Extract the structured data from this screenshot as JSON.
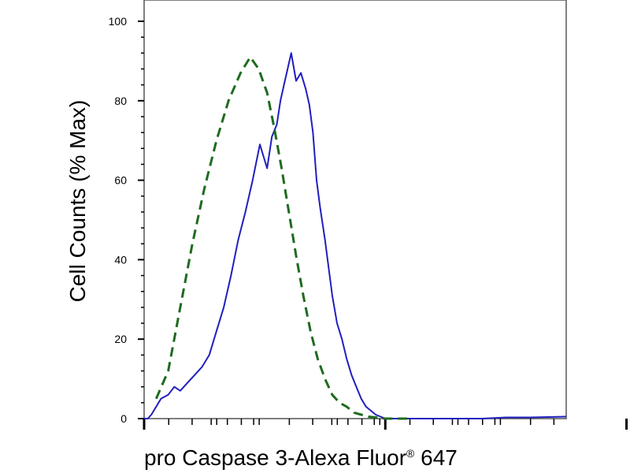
{
  "chart_data": {
    "type": "line",
    "xlabel": "pro Caspase 3-Alexa Fluor",
    "xlabel_sup": "®",
    "xlabel_suffix": " 647",
    "ylabel": "Cell Counts (% Max)",
    "x_scale": "log",
    "xlim": [
      1.0,
      4.5
    ],
    "ylim": [
      0,
      100
    ],
    "y_ticks": [
      0,
      20,
      40,
      60,
      80,
      100
    ],
    "y_tick_labels": [
      "0",
      "20",
      "40",
      "60",
      "80",
      "100"
    ],
    "x_major_ticks": [
      1.0,
      3.0,
      5.0
    ],
    "grid": false,
    "legend": "none",
    "series": [
      {
        "color": "#1f1fbf",
        "style": "solid",
        "x": [
          1.0,
          1.03,
          1.06,
          1.1,
          1.14,
          1.2,
          1.25,
          1.3,
          1.36,
          1.42,
          1.48,
          1.54,
          1.6,
          1.66,
          1.72,
          1.78,
          1.84,
          1.9,
          1.96,
          2.02,
          2.06,
          2.1,
          2.13,
          2.16,
          2.19,
          2.22,
          2.26,
          2.3,
          2.34,
          2.37,
          2.4,
          2.43,
          2.46,
          2.5,
          2.53,
          2.56,
          2.6,
          2.64,
          2.68,
          2.72,
          2.76,
          2.8,
          2.84,
          2.88,
          2.92,
          2.96,
          3.0,
          3.04,
          3.08,
          3.12,
          3.16,
          3.2,
          3.25,
          3.3,
          3.35,
          3.4,
          3.5,
          3.6,
          3.7,
          3.8,
          4.0,
          4.2,
          4.5
        ],
        "values": [
          0,
          0,
          1,
          3,
          5,
          6,
          8,
          7,
          9,
          11,
          13,
          16,
          22,
          28,
          36,
          45,
          52,
          60,
          69,
          63,
          71,
          74,
          80,
          84,
          88,
          92,
          85,
          87,
          83,
          79,
          72,
          60,
          53,
          45,
          38,
          31,
          24,
          20,
          15,
          11,
          8,
          5,
          3,
          2,
          1,
          0.5,
          0,
          0,
          0,
          0,
          0,
          0,
          0,
          0,
          0,
          0,
          0,
          0,
          0,
          0,
          0.3,
          0.3,
          0.5
        ]
      },
      {
        "color": "#1f6b1f",
        "style": "dashed",
        "x": [
          1.1,
          1.2,
          1.3,
          1.4,
          1.5,
          1.6,
          1.7,
          1.8,
          1.88,
          1.95,
          2.02,
          2.08,
          2.14,
          2.2,
          2.26,
          2.32,
          2.38,
          2.44,
          2.5,
          2.56,
          2.62,
          2.68,
          2.74,
          2.8,
          2.86,
          2.92,
          3.0,
          3.06,
          3.12,
          3.18
        ],
        "values": [
          5,
          12,
          28,
          44,
          58,
          70,
          80,
          87,
          91,
          88,
          82,
          73,
          63,
          52,
          41,
          31,
          22,
          15,
          10,
          6,
          4,
          3,
          1.5,
          1,
          0.5,
          0.3,
          0,
          0,
          0,
          0
        ]
      }
    ]
  }
}
